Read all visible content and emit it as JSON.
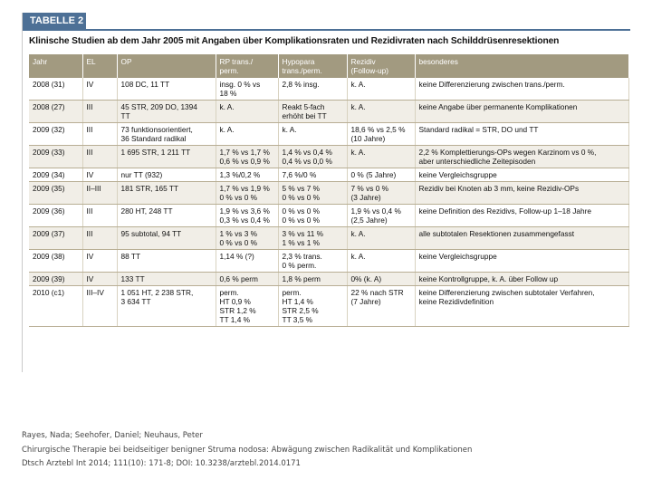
{
  "figure": {
    "tab_label": "TABELLE 2",
    "caption": "Klinische Studien ab dem Jahr 2005 mit Angaben über Komplikationsraten und Rezidivraten nach Schilddrüsenresektionen",
    "headers": [
      "Jahr",
      "EL",
      "OP",
      "RP trans./\nperm.",
      "Hypopara\ntrans./perm.",
      "Rezidiv\n(Follow-up)",
      "besonderes"
    ],
    "rows": [
      [
        "2008 (31)",
        "IV",
        "108 DC, 11 TT",
        "insg. 0 % vs\n18 %",
        "2,8 % insg.",
        "k. A.",
        "keine Differenzierung zwischen trans./perm."
      ],
      [
        "2008 (27)",
        "III",
        "45 STR, 209 DO, 1394\nTT",
        "k. A.",
        "Reakt 5-fach\nerhöht bei TT",
        "k. A.",
        "keine Angabe über permanente Komplikationen"
      ],
      [
        "2009 (32)",
        "III",
        "73 funktionsorientiert,\n36 Standard radikal",
        "k. A.",
        "k. A.",
        "18,6 % vs 2,5 %\n(10 Jahre)",
        "Standard radikal = STR, DO und TT"
      ],
      [
        "2009 (33)",
        "III",
        "1 695 STR, 1 211 TT",
        "1,7 % vs 1,7 %\n0,6 % vs 0,9 %",
        "1,4 % vs 0,4 %\n0,4 % vs 0,0 %",
        "k. A.",
        "2,2 % Komplettierungs-OPs wegen Karzinom vs 0 %,\naber unterschiedliche Zeitepisoden"
      ],
      [
        "2009 (34)",
        "IV",
        "nur TT (932)",
        "1,3 %/0,2 %",
        "7,6 %/0 %",
        "0 % (5 Jahre)",
        "keine Vergleichsgruppe"
      ],
      [
        "2009 (35)",
        "II–III",
        "181 STR, 165 TT",
        "1,7 % vs 1,9 %\n0 % vs 0 %",
        "5 % vs 7 %\n0 % vs 0 %",
        "7 % vs 0 %\n(3 Jahre)",
        "Rezidiv bei Knoten ab 3 mm, keine Rezidiv-OPs"
      ],
      [
        "2009 (36)",
        "III",
        "280 HT, 248 TT",
        "1,9 % vs 3,6 %\n0,3 % vs 0,4 %",
        "0 % vs 0 %\n0 % vs 0 %",
        "1,9 % vs 0,4 %\n(2,5 Jahre)",
        "keine Definition des Rezidivs, Follow-up 1–18 Jahre"
      ],
      [
        "2009 (37)",
        "III",
        "95 subtotal, 94 TT",
        "1 % vs 3 %\n0 % vs 0 %",
        "3 % vs 11 %\n1 % vs 1 %",
        "k. A.",
        "alle subtotalen Resektionen zusammengefasst"
      ],
      [
        "2009 (38)",
        "IV",
        "88 TT",
        "1,14 % (?)",
        "2,3 % trans.\n0 % perm.",
        "k. A.",
        "keine Vergleichsgruppe"
      ],
      [
        "2009 (39)",
        "IV",
        "133 TT",
        "0,6 % perm",
        "1,8 % perm",
        "0% (k. A)",
        "keine Kontrollgruppe, k. A. über Follow up"
      ],
      [
        "2010 (c1)",
        "III–IV",
        "1 051 HT, 2 238 STR,\n3 634 TT",
        "perm.\nHT 0,9 %\nSTR 1,2 %\nTT 1,4 %",
        "perm.\nHT 1,4 %\nSTR 2,5 %\nTT 3,5 %",
        "22 % nach STR\n(7 Jahre)",
        "keine Differenzierung zwischen subtotaler Verfahren,\nkeine Rezidivdefinition"
      ]
    ]
  },
  "footer": {
    "authors": "Rayes, Nada; Seehofer, Daniel; Neuhaus, Peter",
    "title": "Chirurgische Therapie bei beidseitiger benigner Struma nodosa: Abwägung zwischen Radikalität und Komplikationen",
    "citation": "Dtsch Arztebl Int 2014; 111(10): 171-8; DOI: 10.3238/arztebl.2014.0171"
  }
}
